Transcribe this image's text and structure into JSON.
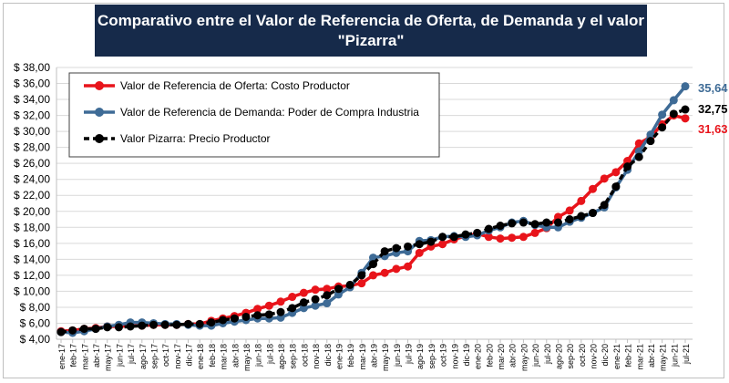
{
  "chart_data": {
    "type": "line",
    "title_line1": "Comparativo entre el Valor de Referencia de Oferta, de Demanda y el valor",
    "title_line2": "\"Pizarra\"",
    "ylim": [
      4,
      38
    ],
    "y_ticks": [
      "$ 4,00",
      "$ 6,00",
      "$ 8,00",
      "$ 10,00",
      "$ 12,00",
      "$ 14,00",
      "$ 16,00",
      "$ 18,00",
      "$ 20,00",
      "$ 22,00",
      "$ 24,00",
      "$ 26,00",
      "$ 28,00",
      "$ 30,00",
      "$ 32,00",
      "$ 34,00",
      "$ 36,00",
      "$ 38,00"
    ],
    "y_tick_values": [
      4,
      6,
      8,
      10,
      12,
      14,
      16,
      18,
      20,
      22,
      24,
      26,
      28,
      30,
      32,
      34,
      36,
      38
    ],
    "categories": [
      "ene-17",
      "feb-17",
      "mar-17",
      "abr-17",
      "may-17",
      "jun-17",
      "jul-17",
      "ago-17",
      "sep-17",
      "oct-17",
      "nov-17",
      "dic-17",
      "ene-18",
      "feb-18",
      "mar-18",
      "abr-18",
      "may-18",
      "jun-18",
      "jul-18",
      "ago-18",
      "sep-18",
      "oct-18",
      "nov-18",
      "dic-18",
      "ene-19",
      "feb-19",
      "mar-19",
      "abr-19",
      "may-19",
      "jun-19",
      "jul-19",
      "ago-19",
      "sep-19",
      "oct-19",
      "nov-19",
      "dic-19",
      "ene-20",
      "feb-20",
      "mar-20",
      "abr-20",
      "may-20",
      "jun-20",
      "jul-20",
      "ago-20",
      "sep-20",
      "oct-20",
      "nov-20",
      "dic-20",
      "ene-21",
      "feb-21",
      "mar-21",
      "abr-21",
      "may-21",
      "jun-21",
      "jul-21"
    ],
    "series": [
      {
        "name": "Valor de Referencia de Oferta: Costo Productor",
        "color": "#e8141b",
        "values": [
          5.0,
          5.1,
          5.3,
          5.4,
          5.6,
          5.6,
          5.7,
          5.7,
          5.8,
          5.8,
          5.8,
          5.9,
          5.9,
          6.3,
          6.6,
          6.9,
          7.3,
          7.8,
          8.2,
          8.7,
          9.3,
          9.8,
          10.2,
          10.3,
          10.6,
          10.7,
          11.0,
          12.0,
          12.3,
          12.8,
          13.1,
          14.8,
          15.6,
          15.9,
          16.5,
          16.9,
          17.2,
          16.8,
          16.6,
          16.7,
          16.8,
          17.3,
          17.9,
          19.3,
          20.1,
          21.3,
          22.8,
          24.1,
          24.9,
          26.3,
          28.5,
          29.3,
          30.9,
          32.0,
          31.63
        ],
        "end_label": "31,63"
      },
      {
        "name": "Valor de Referencia de Demanda: Poder de Compra Industria",
        "color": "#3e6b96",
        "values": [
          4.9,
          4.8,
          5.0,
          5.3,
          5.6,
          5.8,
          6.1,
          6.1,
          6.0,
          5.9,
          5.9,
          5.8,
          5.7,
          5.7,
          6.0,
          6.2,
          6.4,
          6.6,
          6.6,
          6.7,
          7.3,
          7.9,
          8.2,
          8.5,
          9.6,
          10.5,
          12.3,
          14.2,
          14.4,
          14.8,
          15.0,
          16.3,
          16.4,
          16.8,
          16.9,
          16.8,
          17.0,
          17.6,
          18.0,
          18.6,
          18.8,
          18.3,
          18.0,
          18.0,
          18.7,
          19.2,
          19.8,
          20.5,
          23.0,
          25.2,
          27.5,
          29.6,
          32.1,
          33.9,
          35.64
        ],
        "end_label": "35,64"
      },
      {
        "name": "Valor Pizarra: Precio Productor",
        "color": "#000000",
        "values": [
          4.9,
          5.1,
          5.3,
          5.3,
          5.5,
          5.5,
          5.6,
          5.7,
          5.8,
          5.8,
          5.8,
          5.9,
          5.9,
          6.1,
          6.4,
          6.6,
          6.8,
          7.0,
          7.1,
          7.4,
          7.9,
          8.6,
          9.0,
          9.5,
          10.3,
          10.8,
          12.0,
          13.4,
          15.0,
          15.4,
          15.6,
          15.9,
          16.2,
          16.8,
          16.8,
          17.1,
          17.3,
          17.8,
          18.2,
          18.5,
          18.6,
          18.4,
          18.6,
          18.6,
          19.0,
          19.4,
          19.8,
          20.8,
          23.1,
          25.6,
          26.8,
          28.8,
          30.5,
          32.2,
          32.75
        ],
        "end_label": "32,75"
      }
    ],
    "legend_position": "top-left"
  }
}
